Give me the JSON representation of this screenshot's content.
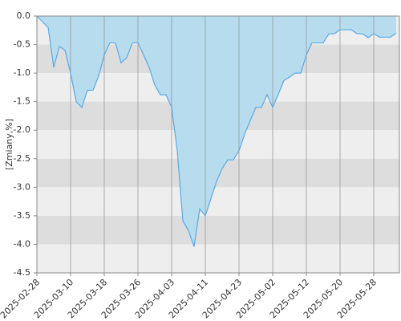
{
  "chart_data": {
    "type": "area",
    "ylabel": "[Zmiany,%]",
    "ylim": [
      -4.5,
      0
    ],
    "yticks": [
      {
        "value": 0,
        "label": "0.0"
      },
      -0.5,
      {
        "value": -1,
        "label": "-1.0"
      },
      -1.5,
      {
        "value": -2,
        "label": "-2.0"
      },
      -2.5,
      {
        "value": -3,
        "label": "-3.0"
      },
      -3.5,
      {
        "value": -4,
        "label": "-4.0"
      },
      -4.5
    ],
    "grid": true,
    "band_colors": [
      "#eeeeee",
      "#dddddd"
    ],
    "fill_color": "#b6dcee",
    "line_color": "#5aa9e6",
    "categories": [
      "2025-02-28",
      null,
      null,
      null,
      null,
      null,
      "2025-03-10",
      null,
      null,
      null,
      null,
      null,
      "2025-03-18",
      null,
      null,
      null,
      null,
      null,
      "2025-03-26",
      null,
      null,
      null,
      null,
      null,
      "2025-04-03",
      null,
      null,
      null,
      null,
      null,
      "2025-04-11",
      null,
      null,
      null,
      null,
      null,
      "2025-04-23",
      null,
      null,
      null,
      null,
      null,
      "2025-05-02",
      null,
      null,
      null,
      null,
      null,
      "2025-05-12",
      null,
      null,
      null,
      null,
      null,
      "2025-05-20",
      null,
      null,
      null,
      null,
      null,
      "2025-05-28",
      null,
      null,
      null,
      null
    ],
    "values": [
      0.0,
      -0.1,
      -0.2,
      -0.9,
      -0.53,
      -0.6,
      -1.0,
      -1.5,
      -1.6,
      -1.3,
      -1.3,
      -1.05,
      -0.68,
      -0.47,
      -0.47,
      -0.82,
      -0.73,
      -0.47,
      -0.47,
      -0.68,
      -0.9,
      -1.21,
      -1.38,
      -1.38,
      -1.6,
      -2.36,
      -3.59,
      -3.76,
      -4.04,
      -3.38,
      -3.5,
      -3.2,
      -2.9,
      -2.67,
      -2.52,
      -2.52,
      -2.36,
      -2.07,
      -1.83,
      -1.6,
      -1.6,
      -1.38,
      -1.6,
      -1.37,
      -1.13,
      -1.07,
      -1.0,
      -1.0,
      -0.68,
      -0.47,
      -0.47,
      -0.47,
      -0.31,
      -0.31,
      -0.24,
      -0.24,
      -0.24,
      -0.31,
      -0.31,
      -0.38,
      -0.31,
      -0.37,
      -0.37,
      -0.37,
      -0.3
    ]
  }
}
